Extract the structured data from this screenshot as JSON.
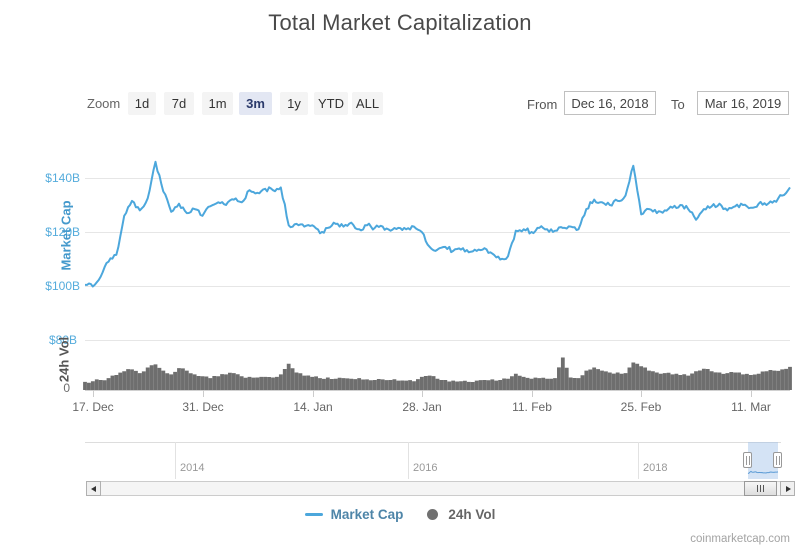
{
  "header": {
    "title": "Total Market Capitalization"
  },
  "controls": {
    "zoom_label": "Zoom",
    "zoom_buttons": [
      {
        "label": "1d",
        "selected": false
      },
      {
        "label": "7d",
        "selected": false
      },
      {
        "label": "1m",
        "selected": false
      },
      {
        "label": "3m",
        "selected": true
      },
      {
        "label": "1y",
        "selected": false
      },
      {
        "label": "YTD",
        "selected": false
      },
      {
        "label": "ALL",
        "selected": false
      }
    ],
    "from_label": "From",
    "from_value": "Dec 16, 2018",
    "to_label": "To",
    "to_value": "Mar 16, 2019"
  },
  "axes": {
    "market_cap": {
      "title": "Market Cap",
      "tick_labels": [
        "$140B",
        "$120B",
        "$100B",
        "$80B"
      ]
    },
    "volume": {
      "title": "24h Vol",
      "zero_label": "0",
      "top_label": "$80B"
    },
    "x_tick_labels": [
      "17. Dec",
      "31. Dec",
      "14. Jan",
      "28. Jan",
      "11. Feb",
      "25. Feb",
      "11. Mar"
    ]
  },
  "navigator": {
    "year_labels": [
      "2014",
      "2016",
      "2018"
    ]
  },
  "legend": {
    "items": [
      {
        "label": "Market Cap"
      },
      {
        "label": "24h Vol"
      }
    ]
  },
  "watermark": "coinmarketcap.com",
  "colors": {
    "market_cap_line": "#4ca7dc",
    "volume_fill": "#6e6e6e",
    "axis_label_blue": "#55acdc",
    "navigator_preview_line": "#5b9bd5",
    "selected_button_bg": "#e3e7f3",
    "selected_button_text": "#2b3a6b"
  },
  "chart_data": {
    "type": "line",
    "title": "Total Market Capitalization",
    "unit": "USD billions",
    "x": {
      "start": "Dec 16, 2018",
      "end": "Mar 16, 2019",
      "interval": "1 day",
      "tick_labels": [
        "17. Dec",
        "31. Dec",
        "14. Jan",
        "28. Jan",
        "11. Feb",
        "25. Feb",
        "11. Mar"
      ]
    },
    "series": [
      {
        "name": "Market Cap",
        "type": "line",
        "color": "#4ca7dc",
        "axis": {
          "title": "Market Cap",
          "range_billions": [
            80,
            150
          ],
          "ticks": [
            80,
            100,
            120,
            140
          ]
        },
        "values_billions": [
          100.4,
          99.8,
          103.5,
          109.0,
          111.5,
          126.0,
          131.5,
          128.0,
          132.5,
          146.0,
          135.0,
          127.5,
          130.5,
          127.0,
          128.5,
          126.0,
          129.5,
          131.0,
          130.0,
          132.0,
          131.0,
          135.5,
          134.5,
          136.0,
          135.5,
          136.5,
          122.5,
          123.0,
          122.0,
          122.5,
          119.5,
          121.5,
          123.0,
          122.0,
          123.5,
          121.0,
          122.5,
          121.5,
          122.0,
          120.5,
          121.5,
          121.0,
          122.0,
          120.0,
          114.5,
          113.5,
          114.5,
          113.0,
          113.5,
          112.5,
          113.0,
          114.0,
          112.0,
          109.8,
          111.0,
          120.5,
          121.0,
          120.0,
          121.5,
          121.0,
          120.5,
          121.5,
          122.0,
          121.0,
          128.5,
          132.0,
          131.0,
          130.0,
          131.5,
          133.5,
          144.5,
          126.5,
          128.5,
          127.0,
          128.0,
          129.0,
          130.0,
          128.5,
          124.5,
          128.5,
          129.5,
          130.5,
          128.0,
          129.5,
          130.0,
          129.0,
          130.5,
          130.0,
          131.5,
          133.5,
          136.5
        ]
      },
      {
        "name": "24h Vol",
        "type": "area",
        "color": "#6e6e6e",
        "axis": {
          "title": "24h Vol",
          "range_billions": [
            0,
            80
          ],
          "ticks": [
            0,
            80
          ]
        },
        "values_billions": [
          13,
          14,
          16,
          19,
          24,
          30,
          33,
          27,
          36,
          41,
          31,
          25,
          35,
          31,
          25,
          22,
          19,
          22,
          25,
          27,
          22,
          21,
          20,
          21,
          20,
          25,
          42,
          28,
          23,
          21,
          19,
          20,
          18,
          19,
          18,
          19,
          17,
          16,
          17,
          16,
          15,
          15,
          14,
          21,
          23,
          18,
          16,
          15,
          14,
          13,
          15,
          16,
          17,
          16,
          18,
          26,
          21,
          18,
          19,
          18,
          19,
          52,
          20,
          19,
          31,
          36,
          31,
          28,
          28,
          27,
          44,
          38,
          31,
          28,
          27,
          25,
          24,
          23,
          30,
          34,
          30,
          28,
          27,
          28,
          25,
          24,
          26,
          30,
          31,
          33,
          37
        ]
      }
    ],
    "navigator": {
      "full_range_years": [
        "2013",
        "2019"
      ],
      "year_gridlines": [
        "2014",
        "2016",
        "2018"
      ],
      "selected_range": [
        "Dec 16, 2018",
        "Mar 16, 2019"
      ]
    },
    "legend_position": "bottom-center",
    "grid": true
  }
}
